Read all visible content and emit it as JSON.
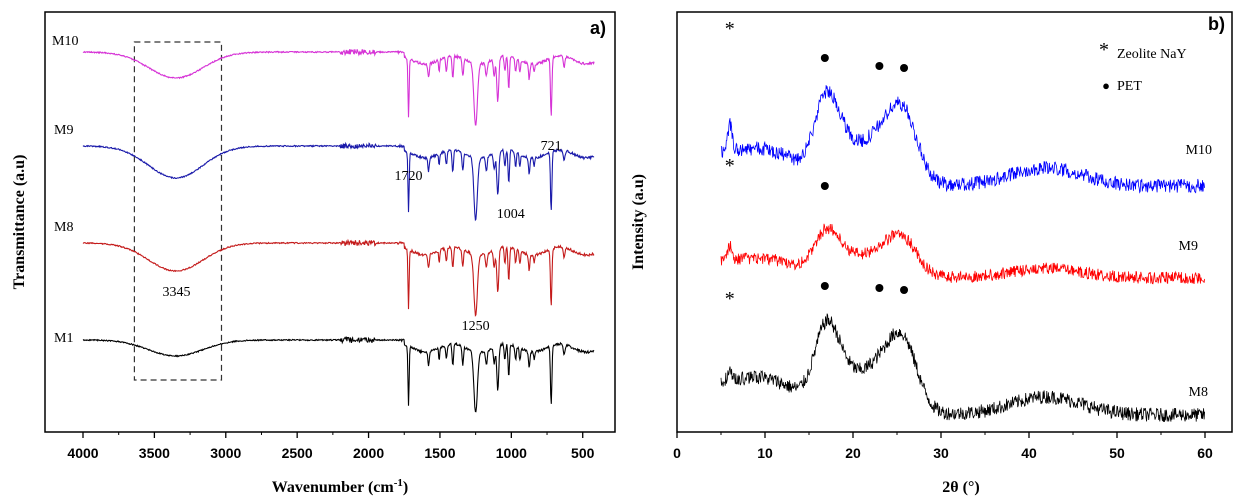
{
  "chart_data": [
    {
      "type": "line",
      "panel_label": "a)",
      "xlabel_main": "Wavenumber (cm",
      "xlabel_sup": "-1",
      "xlabel_tail": ")",
      "ylabel": "Transmittance (a.u)",
      "xlim": [
        4000,
        400
      ],
      "x_reversed": true,
      "xticks": [
        4000,
        3500,
        3000,
        2500,
        2000,
        1500,
        1000,
        500
      ],
      "series": [
        {
          "name": "M10",
          "color": "#d633d6"
        },
        {
          "name": "M9",
          "color": "#1a1aaa"
        },
        {
          "name": "M8",
          "color": "#c41a1a"
        },
        {
          "name": "M1",
          "color": "#000000"
        }
      ],
      "annotations": [
        {
          "text": "1720",
          "x": 1720
        },
        {
          "text": "721",
          "x": 721
        },
        {
          "text": "1004",
          "x": 1004
        },
        {
          "text": "3345",
          "x": 3345
        },
        {
          "text": "1250",
          "x": 1250
        }
      ],
      "highlight_box_x": [
        3640,
        3030
      ]
    },
    {
      "type": "line",
      "panel_label": "b)",
      "xlabel": "2θ (°)",
      "ylabel": "Intensity (a.u)",
      "xlim": [
        0,
        60
      ],
      "xticks": [
        0,
        10,
        20,
        30,
        40,
        50,
        60
      ],
      "series": [
        {
          "name": "M10",
          "color": "#0000ff"
        },
        {
          "name": "M9",
          "color": "#ff0000"
        },
        {
          "name": "M8",
          "color": "#000000"
        }
      ],
      "legend": [
        {
          "marker": "*",
          "label": "Zeolite NaY"
        },
        {
          "marker": "●",
          "label": "PET"
        }
      ],
      "legend_position": "top-right",
      "zeolite_peak_2theta": 6.0,
      "pet_peaks_2theta": [
        16.8,
        23.0,
        25.8
      ]
    }
  ]
}
